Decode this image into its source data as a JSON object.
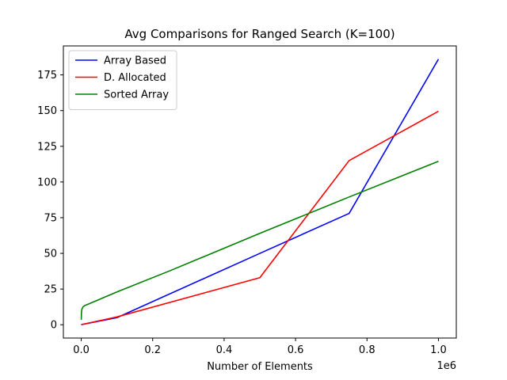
{
  "chart_data": {
    "type": "line",
    "title": "Avg Comparisons for Ranged Search (K=100)",
    "xlabel": "Number of Elements",
    "ylabel": "",
    "x_offset_label": "1e6",
    "xlim": [
      -50000,
      1050000
    ],
    "ylim": [
      -9.3,
      195.3
    ],
    "x_ticks": [
      0,
      200000,
      400000,
      600000,
      800000,
      1000000
    ],
    "x_tick_labels": [
      "0.0",
      "0.2",
      "0.4",
      "0.6",
      "0.8",
      "1.0"
    ],
    "y_ticks": [
      0,
      25,
      50,
      75,
      100,
      125,
      150,
      175
    ],
    "y_tick_labels": [
      "0",
      "25",
      "50",
      "75",
      "100",
      "125",
      "150",
      "175"
    ],
    "grid": false,
    "legend_position": "top-left",
    "series": [
      {
        "name": "Array Based",
        "color": "#0000ff",
        "x": [
          100,
          1000,
          10000,
          100000,
          500000,
          750000,
          1000000
        ],
        "y": [
          0.0,
          0.2,
          0.6,
          5.0,
          50.0,
          78.0,
          186.0
        ]
      },
      {
        "name": "D. Allocated",
        "color": "#ff0000",
        "x": [
          100,
          1000,
          10000,
          100000,
          500000,
          750000,
          1000000
        ],
        "y": [
          0.0,
          0.1,
          0.6,
          5.5,
          33.0,
          115.0,
          149.5
        ]
      },
      {
        "name": "Sorted Array",
        "color": "#008000",
        "x": [
          100,
          500,
          1000,
          2000,
          5000,
          10000,
          20000,
          100000,
          250000,
          500000,
          750000,
          1000000
        ],
        "y": [
          3.5,
          7.5,
          9.5,
          11.0,
          12.5,
          13.5,
          14.5,
          23.0,
          38.0,
          64.0,
          89.5,
          114.5
        ]
      }
    ]
  }
}
